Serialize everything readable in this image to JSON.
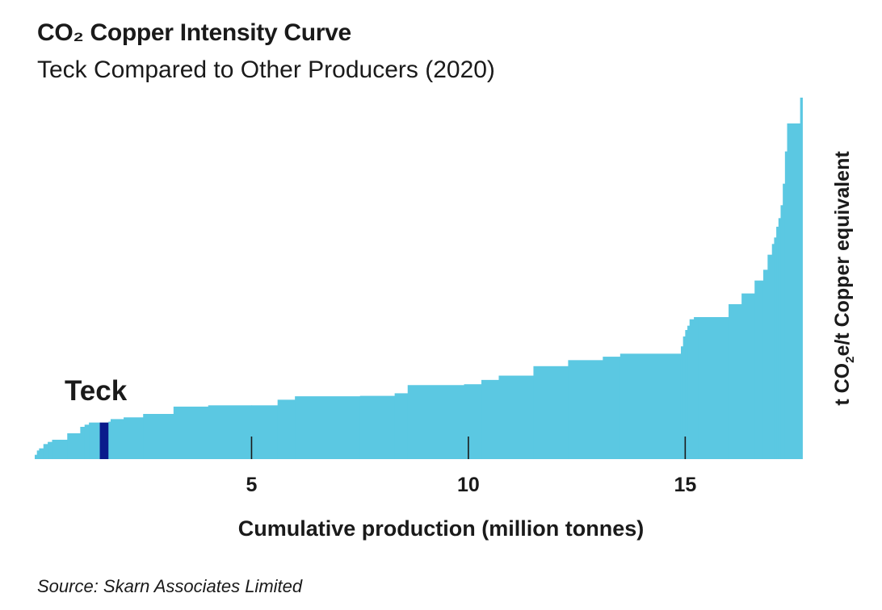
{
  "chart_data": {
    "type": "bar",
    "title": "CO₂ Copper Intensity Curve",
    "subtitle": "Teck Compared to Other Producers (2020)",
    "xlabel": "Cumulative production (million tonnes)",
    "ylabel_main": "t CO",
    "ylabel_sub": "2",
    "ylabel_rest": "e/t Copper equivalent",
    "xlim": [
      0,
      17.75
    ],
    "ylim": [
      0,
      8.4
    ],
    "xticks": [
      5,
      10,
      15
    ],
    "xtick_labels": [
      "5",
      "10",
      "15"
    ],
    "colors": {
      "others": "#5bc8e2",
      "teck": "#0a1a8c"
    },
    "annotation": "Teck",
    "source": "Source: Skarn Associates Limited",
    "producers": [
      {
        "x0": 0.0,
        "x1": 0.05,
        "y": 0.1
      },
      {
        "x0": 0.05,
        "x1": 0.1,
        "y": 0.2
      },
      {
        "x0": 0.1,
        "x1": 0.2,
        "y": 0.25
      },
      {
        "x0": 0.2,
        "x1": 0.3,
        "y": 0.35
      },
      {
        "x0": 0.3,
        "x1": 0.4,
        "y": 0.4
      },
      {
        "x0": 0.4,
        "x1": 0.75,
        "y": 0.45
      },
      {
        "x0": 0.75,
        "x1": 1.05,
        "y": 0.6
      },
      {
        "x0": 1.05,
        "x1": 1.15,
        "y": 0.75
      },
      {
        "x0": 1.15,
        "x1": 1.25,
        "y": 0.8
      },
      {
        "x0": 1.25,
        "x1": 1.5,
        "y": 0.85
      },
      {
        "x0": 1.5,
        "x1": 1.7,
        "y": 0.85,
        "highlight": true
      },
      {
        "x0": 1.7,
        "x1": 1.75,
        "y": 0.87
      },
      {
        "x0": 1.75,
        "x1": 2.05,
        "y": 0.93
      },
      {
        "x0": 2.05,
        "x1": 2.5,
        "y": 0.97
      },
      {
        "x0": 2.5,
        "x1": 3.2,
        "y": 1.05
      },
      {
        "x0": 3.2,
        "x1": 4.0,
        "y": 1.22
      },
      {
        "x0": 4.0,
        "x1": 5.0,
        "y": 1.25
      },
      {
        "x0": 5.0,
        "x1": 5.6,
        "y": 1.25
      },
      {
        "x0": 5.6,
        "x1": 6.0,
        "y": 1.38
      },
      {
        "x0": 6.0,
        "x1": 7.5,
        "y": 1.46
      },
      {
        "x0": 7.5,
        "x1": 8.3,
        "y": 1.47
      },
      {
        "x0": 8.3,
        "x1": 8.6,
        "y": 1.53
      },
      {
        "x0": 8.6,
        "x1": 9.9,
        "y": 1.72
      },
      {
        "x0": 9.9,
        "x1": 10.3,
        "y": 1.74
      },
      {
        "x0": 10.3,
        "x1": 10.7,
        "y": 1.84
      },
      {
        "x0": 10.7,
        "x1": 11.5,
        "y": 1.94
      },
      {
        "x0": 11.5,
        "x1": 12.3,
        "y": 2.16
      },
      {
        "x0": 12.3,
        "x1": 13.1,
        "y": 2.3
      },
      {
        "x0": 13.1,
        "x1": 13.5,
        "y": 2.38
      },
      {
        "x0": 13.5,
        "x1": 14.9,
        "y": 2.45
      },
      {
        "x0": 14.9,
        "x1": 14.95,
        "y": 2.62
      },
      {
        "x0": 14.95,
        "x1": 15.0,
        "y": 2.85
      },
      {
        "x0": 15.0,
        "x1": 15.05,
        "y": 3.0
      },
      {
        "x0": 15.05,
        "x1": 15.1,
        "y": 3.1
      },
      {
        "x0": 15.1,
        "x1": 15.2,
        "y": 3.25
      },
      {
        "x0": 15.2,
        "x1": 15.3,
        "y": 3.3
      },
      {
        "x0": 15.3,
        "x1": 16.0,
        "y": 3.3
      },
      {
        "x0": 16.0,
        "x1": 16.3,
        "y": 3.6
      },
      {
        "x0": 16.3,
        "x1": 16.6,
        "y": 3.85
      },
      {
        "x0": 16.6,
        "x1": 16.8,
        "y": 4.15
      },
      {
        "x0": 16.8,
        "x1": 16.9,
        "y": 4.4
      },
      {
        "x0": 16.9,
        "x1": 17.0,
        "y": 4.75
      },
      {
        "x0": 17.0,
        "x1": 17.05,
        "y": 5.0
      },
      {
        "x0": 17.05,
        "x1": 17.1,
        "y": 5.15
      },
      {
        "x0": 17.1,
        "x1": 17.15,
        "y": 5.4
      },
      {
        "x0": 17.15,
        "x1": 17.2,
        "y": 5.6
      },
      {
        "x0": 17.2,
        "x1": 17.25,
        "y": 5.9
      },
      {
        "x0": 17.25,
        "x1": 17.3,
        "y": 6.4
      },
      {
        "x0": 17.3,
        "x1": 17.35,
        "y": 7.15
      },
      {
        "x0": 17.35,
        "x1": 17.65,
        "y": 7.8
      },
      {
        "x0": 17.65,
        "x1": 17.7,
        "y": 8.4
      }
    ]
  }
}
